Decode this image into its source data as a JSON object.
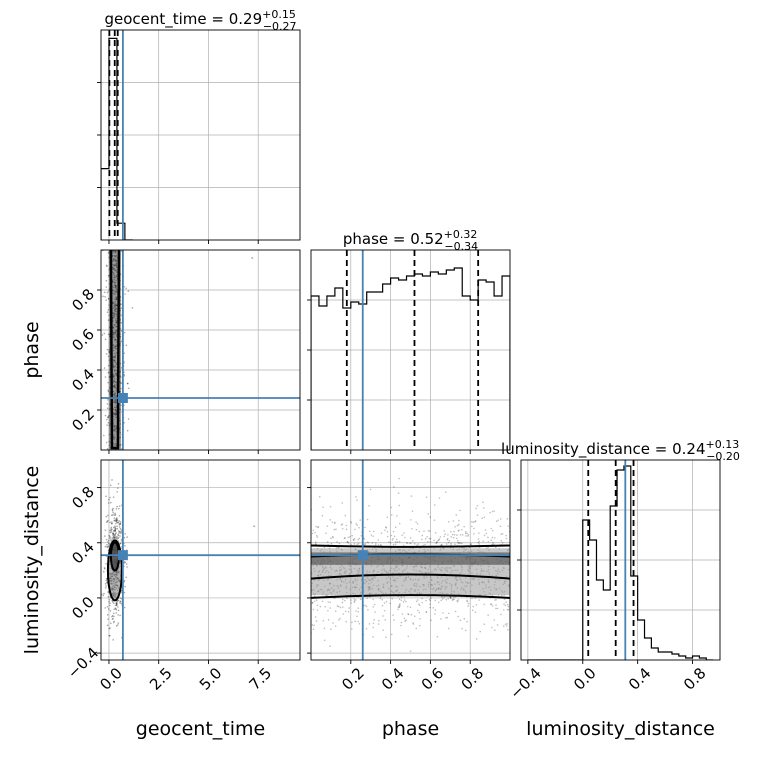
{
  "chart_data": {
    "type": "corner",
    "parameters": [
      {
        "key": "geocent_time",
        "label": "geocent_time",
        "title_name": "geocent_time",
        "median": "0.29",
        "plus": "+0.15",
        "minus": "−0.27"
      },
      {
        "key": "phase",
        "label": "phase",
        "title_name": "phase",
        "median": "0.52",
        "plus": "+0.32",
        "minus": "−0.34"
      },
      {
        "key": "luminosity_distance",
        "label": "luminosity_distance",
        "title_name": "luminosity_distance",
        "median": "0.24",
        "plus": "+0.13",
        "minus": "−0.20"
      }
    ],
    "ranges": {
      "geocent_time": [
        -0.4,
        9.6
      ],
      "phase": [
        0.0,
        1.0
      ],
      "luminosity_distance": [
        -0.45,
        1.0
      ]
    },
    "ticks": {
      "geocent_time": [
        0.0,
        2.5,
        5.0,
        7.5
      ],
      "phase": [
        0.2,
        0.4,
        0.6,
        0.8
      ],
      "luminosity_distance": [
        -0.4,
        0.0,
        0.4,
        0.8
      ]
    },
    "tick_labels": {
      "geocent_time": [
        "0.0",
        "2.5",
        "5.0",
        "7.5"
      ],
      "phase": [
        "0.2",
        "0.4",
        "0.6",
        "0.8"
      ],
      "luminosity_distance": [
        "−0.4",
        "0.0",
        "0.4",
        "0.8"
      ]
    },
    "truths": {
      "geocent_time": 0.7,
      "phase": 0.26,
      "luminosity_distance": 0.31
    },
    "quantiles": {
      "geocent_time": [
        0.02,
        0.29,
        0.44
      ],
      "phase": [
        0.18,
        0.52,
        0.84
      ],
      "luminosity_distance": [
        0.04,
        0.24,
        0.37
      ]
    },
    "histograms": {
      "geocent_time": {
        "edges": [
          -0.4,
          0.0,
          0.4,
          0.8,
          1.2
        ],
        "counts": [
          0.34,
          0.96,
          0.08,
          0.0
        ]
      },
      "phase": {
        "edges": [
          0.0,
          0.04,
          0.08,
          0.12,
          0.16,
          0.2,
          0.24,
          0.28,
          0.32,
          0.36,
          0.4,
          0.44,
          0.48,
          0.52,
          0.56,
          0.6,
          0.64,
          0.68,
          0.72,
          0.76,
          0.8,
          0.84,
          0.88,
          0.92,
          0.96,
          1.0
        ],
        "counts": [
          0.77,
          0.72,
          0.77,
          0.81,
          0.71,
          0.74,
          0.73,
          0.79,
          0.79,
          0.83,
          0.86,
          0.85,
          0.87,
          0.88,
          0.87,
          0.89,
          0.88,
          0.9,
          0.91,
          0.77,
          0.75,
          0.85,
          0.84,
          0.77,
          0.87
        ]
      },
      "luminosity_distance": {
        "edges": [
          -0.4,
          -0.35,
          -0.3,
          -0.25,
          -0.2,
          -0.15,
          -0.1,
          -0.05,
          0.0,
          0.05,
          0.1,
          0.15,
          0.2,
          0.25,
          0.3,
          0.35,
          0.4,
          0.45,
          0.5,
          0.55,
          0.6,
          0.65,
          0.7,
          0.75,
          0.8,
          0.85,
          0.9,
          0.95
        ],
        "counts": [
          0,
          0,
          0,
          0,
          0,
          0,
          0,
          0.0,
          0.7,
          0.6,
          0.4,
          0.35,
          0.77,
          0.95,
          0.97,
          0.42,
          0.2,
          0.11,
          0.06,
          0.04,
          0.04,
          0.03,
          0.02,
          0.01,
          0.02,
          0.01,
          0.0
        ]
      }
    },
    "axes": {
      "x_labels": [
        "geocent_time",
        "phase",
        "luminosity_distance"
      ],
      "y_labels": [
        "phase",
        "luminosity_distance"
      ]
    },
    "colors": {
      "truth": "#4682b4",
      "hist": "#000000",
      "grid": "#b0b0b0",
      "density": "#000000"
    },
    "grid": true
  }
}
